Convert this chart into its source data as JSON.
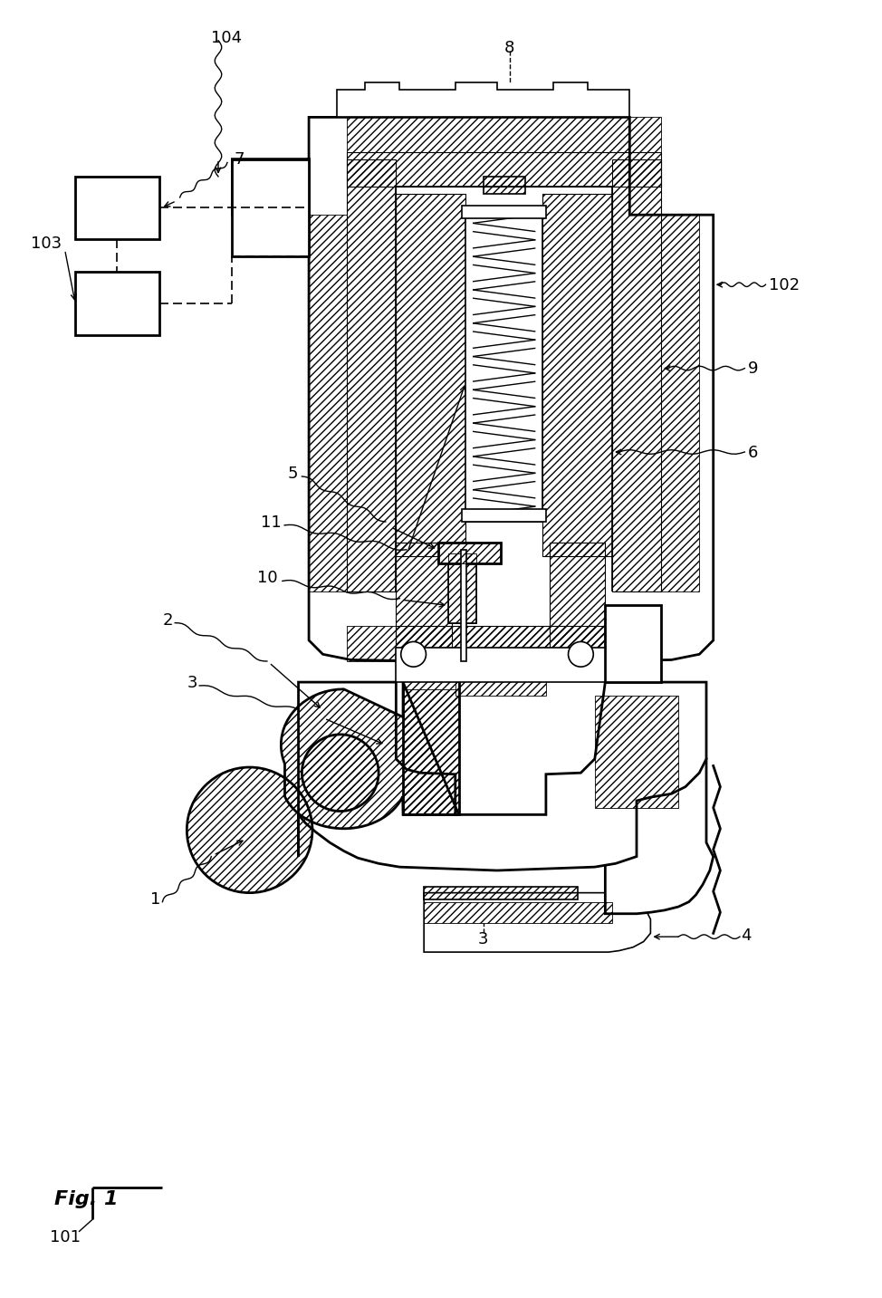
{
  "bg_color": "#ffffff",
  "lw": 1.2,
  "lw2": 2.0,
  "fs": 13,
  "fs_fig": 15,
  "hatch_dense": "////",
  "hatch_back": "\\\\\\\\"
}
